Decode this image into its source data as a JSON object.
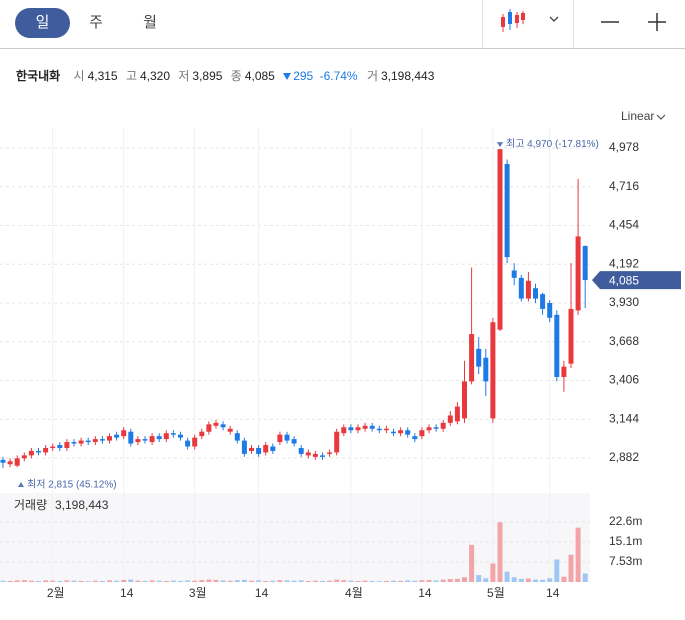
{
  "toolbar": {
    "tabs": [
      "일",
      "주",
      "월"
    ]
  },
  "quote": {
    "name": "한국내화",
    "items": [
      {
        "label": "시",
        "value": "4,315"
      },
      {
        "label": "고",
        "value": "4,320"
      },
      {
        "label": "저",
        "value": "3,895"
      },
      {
        "label": "종",
        "value": "4,085"
      }
    ],
    "change": "295",
    "change_rate": "-6.74%",
    "volume_label": "거",
    "volume": "3,198,443"
  },
  "chart_data": {
    "type": "candlestick",
    "scale": "Linear",
    "max_label": "최고 4,970 (-17.81%)",
    "min_label": "최저 2,815 (45.12%)",
    "volume_title": "거래량",
    "volume_value": "3,198,443",
    "up_color": "#e8393e",
    "down_color": "#1e7be6",
    "up_volume_color": "#f2a5a8",
    "down_volume_color": "#9ec8f3",
    "grid": true,
    "categories": [
      null,
      null,
      null,
      null,
      null,
      null,
      null,
      "2월",
      null,
      null,
      null,
      null,
      null,
      null,
      null,
      null,
      null,
      "14",
      null,
      null,
      null,
      null,
      null,
      null,
      null,
      null,
      null,
      "3월",
      null,
      null,
      null,
      null,
      null,
      null,
      null,
      null,
      "14",
      null,
      null,
      null,
      null,
      null,
      null,
      null,
      null,
      null,
      null,
      null,
      null,
      "4월",
      null,
      null,
      null,
      null,
      null,
      null,
      null,
      null,
      null,
      "14",
      null,
      null,
      null,
      null,
      null,
      null,
      null,
      null,
      null,
      "5월",
      null,
      null,
      null,
      null,
      null,
      null,
      null,
      "14",
      null,
      null,
      null,
      null,
      null
    ],
    "open": [
      2870,
      2840,
      2830,
      2880,
      2900,
      2930,
      2920,
      2950,
      2970,
      2950,
      2990,
      2980,
      3000,
      2990,
      3010,
      3000,
      3040,
      3030,
      3060,
      2990,
      3010,
      2990,
      3030,
      3010,
      3050,
      3040,
      3000,
      2960,
      3030,
      3060,
      3100,
      3110,
      3060,
      3050,
      3000,
      2930,
      2950,
      2920,
      2960,
      2990,
      3040,
      3010,
      2950,
      2900,
      2890,
      2900,
      2910,
      2920,
      3050,
      3090,
      3070,
      3080,
      3100,
      3080,
      3070,
      3060,
      3050,
      3070,
      3030,
      3030,
      3070,
      3090,
      3080,
      3120,
      3130,
      3150,
      3400,
      3620,
      3560,
      3150,
      3750,
      4870,
      4150,
      4100,
      3960,
      4030,
      3990,
      3930,
      3850,
      3430,
      3520,
      3880,
      4315
    ],
    "high": [
      2890,
      2880,
      2900,
      2920,
      2950,
      2950,
      2970,
      2980,
      2990,
      3010,
      3010,
      3020,
      3020,
      3030,
      3030,
      3050,
      3060,
      3090,
      3080,
      3030,
      3030,
      3050,
      3050,
      3070,
      3070,
      3060,
      3020,
      3040,
      3080,
      3130,
      3140,
      3130,
      3100,
      3070,
      3020,
      2970,
      2970,
      2990,
      2980,
      3060,
      3060,
      3030,
      2970,
      2940,
      2930,
      2920,
      2940,
      3080,
      3110,
      3110,
      3110,
      3120,
      3120,
      3100,
      3100,
      3080,
      3090,
      3090,
      3050,
      3090,
      3110,
      3110,
      3140,
      3200,
      3260,
      3540,
      4170,
      3700,
      3620,
      3830,
      4970,
      4900,
      4200,
      4120,
      4140,
      4060,
      4000,
      3950,
      3880,
      3540,
      4200,
      4770,
      4320
    ],
    "low": [
      2815,
      2820,
      2820,
      2860,
      2880,
      2900,
      2900,
      2930,
      2930,
      2930,
      2960,
      2960,
      2970,
      2970,
      2980,
      2980,
      3000,
      3010,
      2960,
      2970,
      2980,
      2970,
      2990,
      2990,
      3020,
      3000,
      2940,
      2940,
      3010,
      3040,
      3080,
      3070,
      3040,
      2980,
      2890,
      2910,
      2890,
      2900,
      2910,
      2970,
      2980,
      2960,
      2890,
      2880,
      2870,
      2870,
      2890,
      2900,
      3030,
      3050,
      3050,
      3060,
      3060,
      3050,
      3050,
      3030,
      3030,
      3020,
      2990,
      3010,
      3050,
      3060,
      3060,
      3100,
      3110,
      3120,
      3380,
      3450,
      3300,
      3120,
      3740,
      4200,
      4050,
      3940,
      3940,
      3930,
      3850,
      3800,
      3400,
      3330,
      3490,
      3850,
      3895
    ],
    "close": [
      2850,
      2860,
      2880,
      2900,
      2930,
      2920,
      2950,
      2960,
      2950,
      2990,
      2980,
      3000,
      2990,
      3010,
      3000,
      3030,
      3020,
      3070,
      2980,
      3010,
      3000,
      3030,
      3010,
      3050,
      3040,
      3020,
      2960,
      3020,
      3060,
      3110,
      3120,
      3090,
      3080,
      3000,
      2910,
      2950,
      2910,
      2970,
      2930,
      3040,
      3000,
      2980,
      2910,
      2920,
      2910,
      2890,
      2920,
      3060,
      3090,
      3070,
      3090,
      3100,
      3080,
      3070,
      3080,
      3050,
      3070,
      3040,
      3010,
      3070,
      3090,
      3080,
      3120,
      3170,
      3230,
      3400,
      3720,
      3500,
      3400,
      3800,
      4970,
      4240,
      4100,
      3960,
      4080,
      3960,
      3890,
      3830,
      3430,
      3500,
      3890,
      4380,
      4085
    ],
    "volume": [
      500000,
      400000,
      600000,
      700000,
      500000,
      400000,
      600000,
      500000,
      400000,
      600000,
      500000,
      400000,
      300000,
      500000,
      400000,
      600000,
      500000,
      800000,
      900000,
      500000,
      400000,
      600000,
      500000,
      400000,
      500000,
      400000,
      600000,
      500000,
      700000,
      900000,
      800000,
      600000,
      500000,
      700000,
      800000,
      500000,
      600000,
      400000,
      500000,
      700000,
      600000,
      500000,
      600000,
      400000,
      500000,
      400000,
      500000,
      900000,
      700000,
      500000,
      400000,
      500000,
      400000,
      300000,
      400000,
      500000,
      400000,
      600000,
      500000,
      700000,
      800000,
      600000,
      900000,
      1100000,
      1200000,
      1800000,
      14000000,
      2600000,
      1400000,
      7000000,
      22500000,
      3900000,
      1800000,
      1200000,
      1300000,
      900000,
      800000,
      1400000,
      8500000,
      2000000,
      10300000,
      20500000,
      3198443
    ],
    "ylim": [
      2666,
      5113
    ],
    "yticks": [
      {
        "value": 2882,
        "label": "2,882"
      },
      {
        "value": 3144,
        "label": "3,144"
      },
      {
        "value": 3406,
        "label": "3,406"
      },
      {
        "value": 3668,
        "label": "3,668"
      },
      {
        "value": 3930,
        "label": "3,930"
      },
      {
        "value": 4192,
        "label": "4,192"
      },
      {
        "value": 4454,
        "label": "4,454"
      },
      {
        "value": 4716,
        "label": "4,716"
      },
      {
        "value": 4978,
        "label": "4,978"
      }
    ],
    "volume_ylim": [
      0,
      32800000
    ],
    "volume_yticks": [
      {
        "value": 7530000,
        "label": "7.53m"
      },
      {
        "value": 15100000,
        "label": "15.1m"
      },
      {
        "value": 22600000,
        "label": "22.6m"
      }
    ]
  }
}
